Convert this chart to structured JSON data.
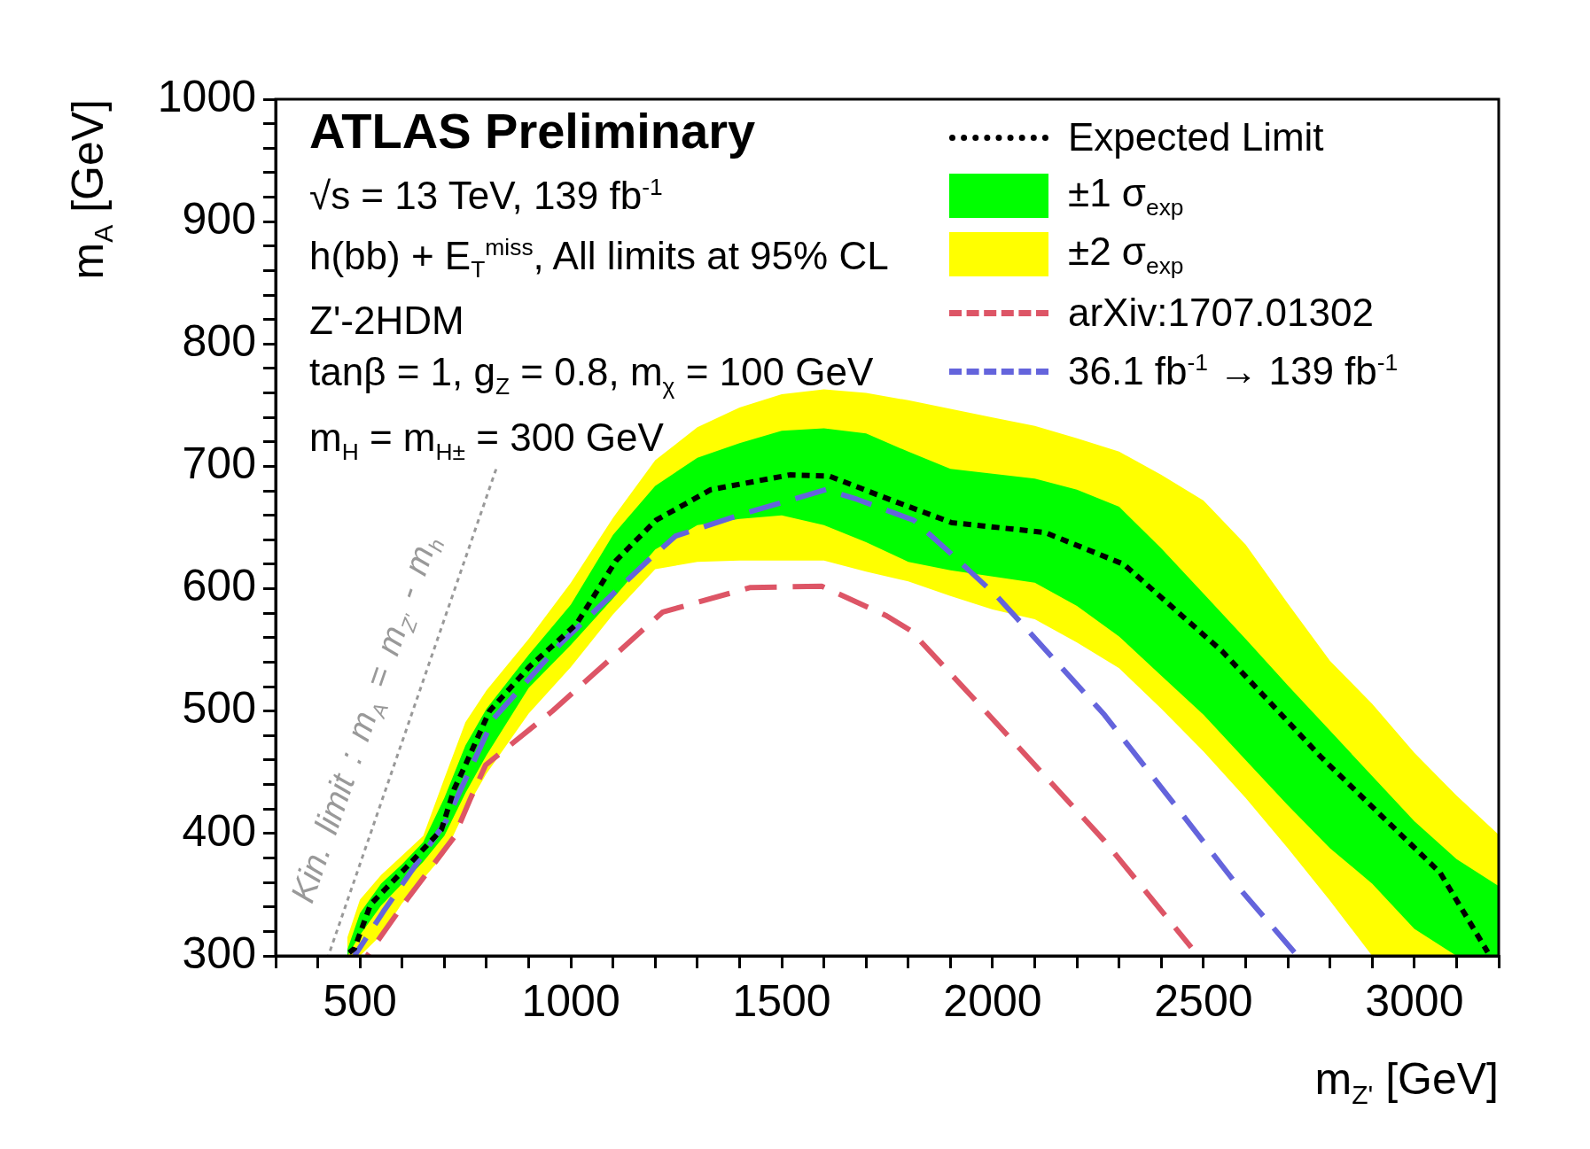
{
  "chart_data": {
    "type": "line",
    "xlabel": "m$_{Z'}$ [GeV]",
    "ylabel": "m$_{A}$ [GeV]",
    "annotations": [
      "ATLAS Preliminary",
      "√s = 13 TeV, 139 fb$^{-1}$",
      "h(bb) + E$_{T}$$^{miss}$, All limits at 95% CL",
      "Z'-2HDM",
      "tanβ = 1, g$_{Z}$ = 0.8, m$_{χ}$ = 100 GeV",
      "m$_{H}$ = m$_{H±}$ = 300 GeV"
    ],
    "xlim": [
      300,
      3200
    ],
    "ylim": [
      300,
      1000
    ],
    "xticks": [
      {
        "value": 300,
        "label": null
      },
      {
        "value": 400,
        "label": null
      },
      500,
      {
        "value": 600,
        "label": null
      },
      {
        "value": 700,
        "label": null
      },
      {
        "value": 800,
        "label": null
      },
      {
        "value": 900,
        "label": null
      },
      1000,
      {
        "value": 1100,
        "label": null
      },
      {
        "value": 1200,
        "label": null
      },
      {
        "value": 1300,
        "label": null
      },
      {
        "value": 1400,
        "label": null
      },
      1500,
      {
        "value": 1600,
        "label": null
      },
      {
        "value": 1700,
        "label": null
      },
      {
        "value": 1800,
        "label": null
      },
      {
        "value": 1900,
        "label": null
      },
      2000,
      {
        "value": 2100,
        "label": null
      },
      {
        "value": 2200,
        "label": null
      },
      {
        "value": 2300,
        "label": null
      },
      {
        "value": 2400,
        "label": null
      },
      2500,
      {
        "value": 2600,
        "label": null
      },
      {
        "value": 2700,
        "label": null
      },
      {
        "value": 2800,
        "label": null
      },
      {
        "value": 2900,
        "label": null
      },
      3000,
      {
        "value": 3100,
        "label": null
      },
      {
        "value": 3200,
        "label": null
      }
    ],
    "yticks": [
      300,
      {
        "value": 320,
        "label": null
      },
      {
        "value": 340,
        "label": null
      },
      {
        "value": 360,
        "label": null
      },
      {
        "value": 380,
        "label": null
      },
      400,
      {
        "value": 420,
        "label": null
      },
      {
        "value": 440,
        "label": null
      },
      {
        "value": 460,
        "label": null
      },
      {
        "value": 480,
        "label": null
      },
      500,
      {
        "value": 520,
        "label": null
      },
      {
        "value": 540,
        "label": null
      },
      {
        "value": 560,
        "label": null
      },
      {
        "value": 580,
        "label": null
      },
      600,
      {
        "value": 620,
        "label": null
      },
      {
        "value": 640,
        "label": null
      },
      {
        "value": 660,
        "label": null
      },
      {
        "value": 680,
        "label": null
      },
      700,
      {
        "value": 720,
        "label": null
      },
      {
        "value": 740,
        "label": null
      },
      {
        "value": 760,
        "label": null
      },
      {
        "value": 780,
        "label": null
      },
      800,
      {
        "value": 820,
        "label": null
      },
      {
        "value": 840,
        "label": null
      },
      {
        "value": 860,
        "label": null
      },
      {
        "value": 880,
        "label": null
      },
      900,
      {
        "value": 920,
        "label": null
      },
      {
        "value": 940,
        "label": null
      },
      {
        "value": 960,
        "label": null
      },
      {
        "value": 980,
        "label": null
      },
      1000
    ],
    "grid": false,
    "legend": "top right",
    "series": [
      {
        "name": "Expected Limit",
        "color": "#000000",
        "line_style": "dotted",
        "x": [
          464,
          487,
          525,
          609,
          693,
          723,
          750,
          807,
          901,
          1013,
          1107,
          1202,
          1332,
          1519,
          1613,
          1763,
          1903,
          2124,
          2311,
          2544,
          2780,
          3061,
          3174
        ],
        "values": [
          300,
          306,
          342,
          372,
          403,
          436,
          456,
          500,
          536,
          571,
          623,
          656,
          681,
          693,
          692,
          672,
          654,
          646,
          620,
          549,
          462,
          368,
          303
        ]
      },
      {
        "name": "±1 σ$_{exp}$",
        "color": "#00ff00",
        "x": [
          470,
          500,
          550,
          600,
          650,
          700,
          750,
          800,
          900,
          1000,
          1100,
          1200,
          1300,
          1400,
          1500,
          1600,
          1700,
          1800,
          1900,
          2000,
          2100,
          2200,
          2300,
          2400,
          2500,
          2600,
          2700,
          2800,
          2900,
          3000,
          3100,
          3200
        ],
        "values": [
          null,
          null,
          null,
          null,
          null,
          null,
          null,
          null,
          null,
          null,
          null,
          null,
          null,
          null,
          null,
          null,
          null,
          null,
          null,
          null,
          null,
          null,
          null,
          null,
          null,
          null,
          null,
          null,
          null,
          null,
          null,
          null
        ],
        "upper": [
          305,
          335,
          359,
          375,
          393,
          429,
          472,
          502,
          546,
          587,
          644,
          684,
          707,
          719,
          729,
          731,
          727,
          712,
          698,
          694,
          690,
          681,
          667,
          633,
          596,
          559,
          521,
          484,
          447,
          410,
          379,
          357
        ],
        "lower": [
          300,
          317,
          341,
          359,
          377,
          398,
          433,
          464,
          519,
          554,
          592,
          632,
          652,
          657,
          660,
          652,
          638,
          622,
          615,
          610,
          605,
          586,
          561,
          529,
          497,
          460,
          423,
          388,
          359,
          322,
          300,
          300
        ]
      },
      {
        "name": "±2 σ$_{exp}$",
        "color": "#ffff00",
        "x": [
          470,
          500,
          550,
          600,
          650,
          700,
          750,
          800,
          900,
          1000,
          1100,
          1200,
          1300,
          1400,
          1500,
          1600,
          1700,
          1800,
          1900,
          2000,
          2100,
          2200,
          2300,
          2400,
          2500,
          2600,
          2700,
          2800,
          2900,
          3000,
          3100,
          3200
        ],
        "values": [
          null,
          null,
          null,
          null,
          null,
          null,
          null,
          null,
          null,
          null,
          null,
          null,
          null,
          null,
          null,
          null,
          null,
          null,
          null,
          null,
          null,
          null,
          null,
          null,
          null,
          null,
          null,
          null,
          null,
          null,
          null,
          null
        ],
        "upper": [
          315,
          346,
          366,
          382,
          398,
          445,
          491,
          517,
          559,
          605,
          658,
          705,
          732,
          748,
          759,
          763,
          760,
          754,
          747,
          740,
          733,
          723,
          712,
          693,
          672,
          636,
          588,
          541,
          506,
          466,
          431,
          399
        ],
        "lower": [
          300,
          300,
          317,
          343,
          363,
          383,
          419,
          449,
          498,
          536,
          579,
          616,
          622,
          623,
          623,
          623,
          614,
          606,
          594,
          583,
          575,
          556,
          535,
          502,
          467,
          429,
          388,
          345,
          300,
          300,
          300,
          300
        ]
      },
      {
        "name": "arXiv:1707.01302",
        "color": "#dd5566",
        "line_style": "dashed",
        "x": [
          517,
          609,
          723,
          760,
          798,
          956,
          1218,
          1426,
          1595,
          1748,
          1805,
          1983,
          2265,
          2471
        ],
        "values": [
          300,
          345,
          397,
          427,
          456,
          500,
          581,
          601,
          602,
          578,
          566,
          500,
          394,
          307
        ]
      },
      {
        "name": "36.1 fb$^{-1}$ → 139 fb$^{-1}$",
        "color": "#6464dc",
        "line_style": "dashed",
        "x": [
          487,
          555,
          704,
          817,
          975,
          1183,
          1248,
          1416,
          1605,
          1679,
          1813,
          1897,
          2010,
          2265,
          2433,
          2593,
          2723
        ],
        "values": [
          300,
          336,
          410,
          494,
          555,
          623,
          643,
          662,
          681,
          673,
          656,
          630,
          594,
          497,
          423,
          352,
          300
        ]
      },
      {
        "name": "Kin. limit : m$_{A}$ = m$_{Z'}$ - m$_{h}$",
        "color": "#999999",
        "line_style": "dotted",
        "x": [
          425,
          825
        ],
        "values": [
          300,
          700
        ]
      }
    ]
  }
}
